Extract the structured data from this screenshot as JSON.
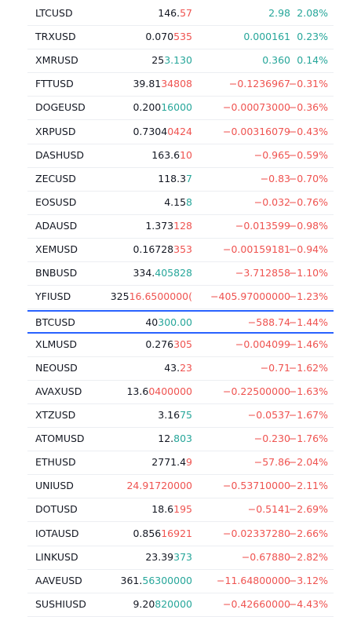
{
  "colors": {
    "up": "#26a69a",
    "down": "#ef5350"
  },
  "rows": [
    {
      "symbol": "LTCUSD",
      "price_head": "146.",
      "price_tail": "57",
      "tail_dir": "down",
      "change": "2.98",
      "change_pct": "2.08%",
      "dir": "up"
    },
    {
      "symbol": "TRXUSD",
      "price_head": "0.070",
      "price_tail": "535",
      "tail_dir": "down",
      "change": "0.000161",
      "change_pct": "0.23%",
      "dir": "up"
    },
    {
      "symbol": "XMRUSD",
      "price_head": "25",
      "price_tail": "3.130",
      "tail_dir": "up",
      "change": "0.360",
      "change_pct": "0.14%",
      "dir": "up"
    },
    {
      "symbol": "FTTUSD",
      "price_head": "39.81",
      "price_tail": "34808",
      "tail_dir": "down",
      "change": "−0.1236967",
      "change_pct": "−0.31%",
      "dir": "down"
    },
    {
      "symbol": "DOGEUSD",
      "price_head": "0.200",
      "price_tail": "16000",
      "tail_dir": "up",
      "change": "−0.00073000",
      "change_pct": "−0.36%",
      "dir": "down"
    },
    {
      "symbol": "XRPUSD",
      "price_head": "0.7304",
      "price_tail": "0424",
      "tail_dir": "down",
      "change": "−0.00316079",
      "change_pct": "−0.43%",
      "dir": "down"
    },
    {
      "symbol": "DASHUSD",
      "price_head": "163.6",
      "price_tail": "10",
      "tail_dir": "down",
      "change": "−0.965",
      "change_pct": "−0.59%",
      "dir": "down"
    },
    {
      "symbol": "ZECUSD",
      "price_head": "118.3",
      "price_tail": "7",
      "tail_dir": "up",
      "change": "−0.83",
      "change_pct": "−0.70%",
      "dir": "down"
    },
    {
      "symbol": "EOSUSD",
      "price_head": "4.15",
      "price_tail": "8",
      "tail_dir": "up",
      "change": "−0.032",
      "change_pct": "−0.76%",
      "dir": "down"
    },
    {
      "symbol": "ADAUSD",
      "price_head": "1.373",
      "price_tail": "128",
      "tail_dir": "down",
      "change": "−0.013599",
      "change_pct": "−0.98%",
      "dir": "down"
    },
    {
      "symbol": "XEMUSD",
      "price_head": "0.16728",
      "price_tail": "353",
      "tail_dir": "down",
      "change": "−0.00159181",
      "change_pct": "−0.94%",
      "dir": "down"
    },
    {
      "symbol": "BNBUSD",
      "price_head": "334.",
      "price_tail": "405828",
      "tail_dir": "up",
      "change": "−3.712858",
      "change_pct": "−1.10%",
      "dir": "down"
    },
    {
      "symbol": "YFIUSD",
      "price_head": "325",
      "price_tail": "16.6500000(",
      "tail_dir": "down",
      "change": "−405.97000000",
      "change_pct": "−1.23%",
      "dir": "down"
    },
    {
      "symbol": "BTCUSD",
      "price_head": "40",
      "price_tail": "300.00",
      "tail_dir": "up",
      "change": "−588.74",
      "change_pct": "−1.44%",
      "dir": "down",
      "selected": true
    },
    {
      "symbol": "XLMUSD",
      "price_head": "0.276",
      "price_tail": "305",
      "tail_dir": "down",
      "change": "−0.004099",
      "change_pct": "−1.46%",
      "dir": "down"
    },
    {
      "symbol": "NEOUSD",
      "price_head": "43.",
      "price_tail": "23",
      "tail_dir": "down",
      "change": "−0.71",
      "change_pct": "−1.62%",
      "dir": "down"
    },
    {
      "symbol": "AVAXUSD",
      "price_head": "13.6",
      "price_tail": "0400000",
      "tail_dir": "down",
      "change": "−0.22500000",
      "change_pct": "−1.63%",
      "dir": "down"
    },
    {
      "symbol": "XTZUSD",
      "price_head": "3.16",
      "price_tail": "75",
      "tail_dir": "up",
      "change": "−0.0537",
      "change_pct": "−1.67%",
      "dir": "down"
    },
    {
      "symbol": "ATOMUSD",
      "price_head": "12.",
      "price_tail": "803",
      "tail_dir": "up",
      "change": "−0.230",
      "change_pct": "−1.76%",
      "dir": "down"
    },
    {
      "symbol": "ETHUSD",
      "price_head": "2771.4",
      "price_tail": "9",
      "tail_dir": "down",
      "change": "−57.86",
      "change_pct": "−2.04%",
      "dir": "down"
    },
    {
      "symbol": "UNIUSD",
      "price_head": "",
      "price_tail": "24.91720000",
      "tail_dir": "down",
      "change": "−0.53710000",
      "change_pct": "−2.11%",
      "dir": "down"
    },
    {
      "symbol": "DOTUSD",
      "price_head": "18.6",
      "price_tail": "195",
      "tail_dir": "down",
      "change": "−0.5141",
      "change_pct": "−2.69%",
      "dir": "down"
    },
    {
      "symbol": "IOTAUSD",
      "price_head": "0.856",
      "price_tail": "16921",
      "tail_dir": "down",
      "change": "−0.02337280",
      "change_pct": "−2.66%",
      "dir": "down"
    },
    {
      "symbol": "LINKUSD",
      "price_head": "23.39",
      "price_tail": "373",
      "tail_dir": "up",
      "change": "−0.67880",
      "change_pct": "−2.82%",
      "dir": "down"
    },
    {
      "symbol": "AAVEUSD",
      "price_head": "361.",
      "price_tail": "56300000",
      "tail_dir": "up",
      "change": "−11.64800000",
      "change_pct": "−3.12%",
      "dir": "down"
    },
    {
      "symbol": "SUSHIUSD",
      "price_head": "9.20",
      "price_tail": "820000",
      "tail_dir": "up",
      "change": "−0.42660000",
      "change_pct": "−4.43%",
      "dir": "down"
    }
  ]
}
